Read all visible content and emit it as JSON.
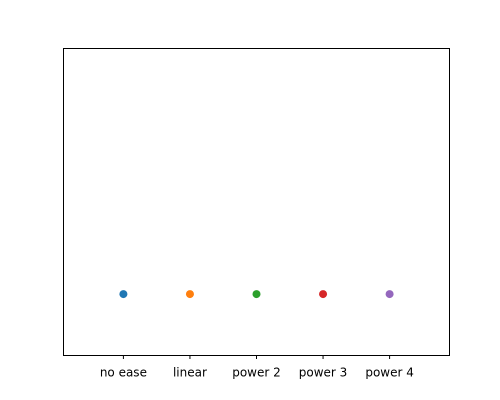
{
  "chart_data": {
    "type": "scatter",
    "categories": [
      "no ease",
      "linear",
      "power 2",
      "power 3",
      "power 4"
    ],
    "series": [
      {
        "category": "no ease",
        "y": 0.2,
        "color": "#1f77b4"
      },
      {
        "category": "linear",
        "y": 0.2,
        "color": "#ff7f0e"
      },
      {
        "category": "power 2",
        "y": 0.2,
        "color": "#2ca02c"
      },
      {
        "category": "power 3",
        "y": 0.2,
        "color": "#d62728"
      },
      {
        "category": "power 4",
        "y": 0.2,
        "color": "#9467bd"
      }
    ],
    "xlim": [
      -0.9,
      4.9
    ],
    "ylim": [
      0,
      1
    ],
    "yticks_visible": false,
    "grid": false,
    "legend": "none"
  }
}
